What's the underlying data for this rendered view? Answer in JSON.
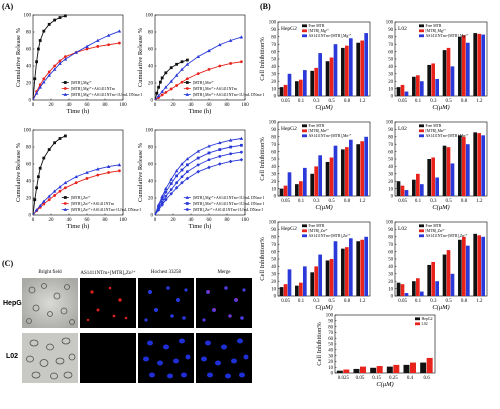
{
  "panels": {
    "A": "(A)",
    "B": "(B)",
    "C": "(C)"
  },
  "colors": {
    "black": "#111111",
    "red": "#e8231c",
    "blue": "#2a39d8",
    "navy": "#1c2a8a"
  },
  "chart_data": [
    {
      "id": "A1",
      "type": "line",
      "ylabel": "Cumulative Release %",
      "xlabel": "Time (h)",
      "xlim": [
        0,
        100
      ],
      "ylim": [
        0,
        100
      ],
      "xticks": [
        0,
        20,
        40,
        60,
        80,
        100
      ],
      "yticks": [
        0,
        20,
        40,
        60,
        80,
        100
      ],
      "series": [
        {
          "name": "[MTR]₂Mg²⁺",
          "color": "#111111",
          "marker": "square",
          "x": [
            0,
            2,
            4,
            6,
            8,
            12,
            18,
            24,
            30,
            36
          ],
          "y": [
            0,
            25,
            45,
            60,
            70,
            81,
            89,
            94,
            97,
            99
          ]
        },
        {
          "name": "[MTR]₂Mg²⁺+AS1411NTm",
          "color": "#e8231c",
          "marker": "circle",
          "x": [
            0,
            4,
            8,
            12,
            18,
            24,
            30,
            36,
            48,
            60,
            72,
            84,
            96
          ],
          "y": [
            0,
            10,
            18,
            25,
            33,
            40,
            46,
            51,
            56,
            60,
            63,
            65,
            67
          ]
        },
        {
          "name": "[MTR]₂Mg²⁺+AS1411NTm+1U/mL DNase I",
          "color": "#2a39d8",
          "marker": "triangle",
          "x": [
            0,
            4,
            8,
            12,
            18,
            24,
            30,
            36,
            48,
            60,
            72,
            84,
            96
          ],
          "y": [
            0,
            8,
            15,
            21,
            29,
            36,
            43,
            48,
            56,
            63,
            70,
            76,
            81
          ]
        }
      ],
      "legend": "bottom-right"
    },
    {
      "id": "A2",
      "type": "line",
      "ylabel": "Cumulative Release %",
      "xlabel": "Time (h)",
      "xlim": [
        0,
        100
      ],
      "ylim": [
        0,
        100
      ],
      "xticks": [
        0,
        20,
        40,
        60,
        80,
        100
      ],
      "yticks": [
        0,
        20,
        40,
        60,
        80,
        100
      ],
      "series": [
        {
          "name": "[MTR]₂Mn²⁺",
          "color": "#111111",
          "marker": "square",
          "x": [
            0,
            2,
            4,
            6,
            8,
            12,
            18,
            24,
            30,
            36
          ],
          "y": [
            0,
            8,
            15,
            21,
            26,
            32,
            38,
            42,
            45,
            47
          ]
        },
        {
          "name": "[MTR]₂Mn²⁺+AS1411NTm",
          "color": "#e8231c",
          "marker": "circle",
          "x": [
            0,
            4,
            8,
            12,
            18,
            24,
            30,
            36,
            48,
            60,
            72,
            84,
            96
          ],
          "y": [
            0,
            3,
            6,
            9,
            13,
            17,
            21,
            25,
            31,
            36,
            40,
            43,
            45
          ]
        },
        {
          "name": "[MTR]₂Mn²⁺+AS1411NTm+1U/mL DNase I",
          "color": "#2a39d8",
          "marker": "triangle",
          "x": [
            0,
            4,
            8,
            12,
            18,
            24,
            30,
            36,
            48,
            60,
            72,
            84,
            96
          ],
          "y": [
            0,
            5,
            10,
            15,
            22,
            29,
            36,
            42,
            51,
            58,
            65,
            70,
            74
          ]
        }
      ],
      "legend": "bottom-right"
    },
    {
      "id": "A3",
      "type": "line",
      "ylabel": "Cumulative Release %",
      "xlabel": "Time (h)",
      "xlim": [
        0,
        100
      ],
      "ylim": [
        0,
        100
      ],
      "xticks": [
        0,
        20,
        40,
        60,
        80,
        100
      ],
      "yticks": [
        0,
        20,
        40,
        60,
        80,
        100
      ],
      "series": [
        {
          "name": "[MTR]₂Zn²⁺",
          "color": "#111111",
          "marker": "square",
          "x": [
            0,
            2,
            4,
            6,
            8,
            12,
            18,
            24,
            30,
            36
          ],
          "y": [
            0,
            18,
            32,
            45,
            55,
            67,
            77,
            85,
            90,
            93
          ]
        },
        {
          "name": "[MTR]₂Zn²⁺+AS1411NTm",
          "color": "#e8231c",
          "marker": "circle",
          "x": [
            0,
            4,
            8,
            12,
            18,
            24,
            30,
            36,
            48,
            60,
            72,
            84,
            96
          ],
          "y": [
            0,
            5,
            9,
            13,
            18,
            23,
            28,
            32,
            38,
            43,
            47,
            50,
            52
          ]
        },
        {
          "name": "[MTR]₂Zn²⁺+AS1411NTm+1U/mL DNase I",
          "color": "#2a39d8",
          "marker": "triangle",
          "x": [
            0,
            4,
            8,
            12,
            18,
            24,
            30,
            36,
            48,
            60,
            72,
            84,
            96
          ],
          "y": [
            0,
            6,
            11,
            16,
            22,
            28,
            33,
            38,
            45,
            50,
            54,
            57,
            59
          ]
        }
      ],
      "legend": "bottom-right"
    },
    {
      "id": "A4",
      "type": "line",
      "ylabel": "Cumulative Release %",
      "xlabel": "Time (h)",
      "xlim": [
        0,
        100
      ],
      "ylim": [
        0,
        100
      ],
      "xticks": [
        0,
        20,
        40,
        60,
        80,
        100
      ],
      "yticks": [
        0,
        20,
        40,
        60,
        80,
        100
      ],
      "series": [
        {
          "name": "[MTR]₂Mg²⁺+AS1411NTm+1U/mL DNase I",
          "color": "#2a39d8",
          "marker": "triangle",
          "x": [
            0,
            4,
            8,
            12,
            18,
            24,
            30,
            36,
            48,
            60,
            72,
            84,
            96
          ],
          "y": [
            0,
            12,
            22,
            31,
            42,
            52,
            60,
            66,
            75,
            81,
            85,
            88,
            90
          ]
        },
        {
          "name": "[MTR]₂Mn²⁺+AS1411NTm+1U/mL DNase I",
          "color": "#2a39d8",
          "marker": "square",
          "x": [
            0,
            4,
            8,
            12,
            18,
            24,
            30,
            36,
            48,
            60,
            72,
            84,
            96
          ],
          "y": [
            0,
            10,
            19,
            27,
            37,
            46,
            53,
            59,
            67,
            73,
            77,
            80,
            82
          ]
        },
        {
          "name": "[MTR]₂Zn²⁺+AS1411NTm+1U/mL DNase I",
          "color": "#2a39d8",
          "marker": "circle",
          "x": [
            0,
            4,
            8,
            12,
            18,
            24,
            30,
            36,
            48,
            60,
            72,
            84,
            96
          ],
          "y": [
            0,
            8,
            15,
            22,
            30,
            38,
            45,
            51,
            59,
            65,
            69,
            72,
            74
          ]
        },
        {
          "name": "",
          "color": "#2a39d8",
          "marker": "diamond",
          "x": [
            0,
            4,
            8,
            12,
            18,
            24,
            30,
            36,
            48,
            60,
            72,
            84,
            96
          ],
          "y": [
            0,
            6,
            12,
            18,
            25,
            32,
            38,
            43,
            51,
            56,
            60,
            63,
            65
          ]
        }
      ],
      "legend": "bottom-right"
    },
    {
      "id": "B1",
      "type": "bar",
      "title": "HepG2",
      "ylabel": "Cell Inhibition%",
      "xlabel": "C(μM)",
      "ylim": [
        0,
        100
      ],
      "yticks": [
        0,
        10,
        20,
        30,
        40,
        50,
        60,
        70,
        80,
        90,
        100
      ],
      "categories": [
        "0.05",
        "0.1",
        "0.3",
        "0.5",
        "0.8",
        "1.2"
      ],
      "series": [
        {
          "name": "Free MTR",
          "color": "#111111",
          "values": [
            12,
            20,
            34,
            47,
            65,
            72
          ]
        },
        {
          "name": "[MTR]₂Mg²⁺",
          "color": "#e8231c",
          "values": [
            15,
            22,
            38,
            52,
            68,
            75
          ]
        },
        {
          "name": "AS1411NTm+[MTR]₂Mg²⁺",
          "color": "#2a39d8",
          "values": [
            30,
            35,
            58,
            70,
            78,
            85
          ]
        }
      ],
      "legend": "top-left"
    },
    {
      "id": "B2",
      "type": "bar",
      "title": "L02",
      "ylabel": "",
      "xlabel": "C(μM)",
      "ylim": [
        0,
        100
      ],
      "yticks": [
        0,
        10,
        20,
        30,
        40,
        50,
        60,
        70,
        80,
        90,
        100
      ],
      "categories": [
        "0.05",
        "0.1",
        "0.3",
        "0.5",
        "0.8",
        "1.2"
      ],
      "series": [
        {
          "name": "Free MTR",
          "color": "#111111",
          "values": [
            12,
            26,
            42,
            62,
            80,
            85
          ]
        },
        {
          "name": "[MTR]₂Mg²⁺",
          "color": "#e8231c",
          "values": [
            15,
            28,
            44,
            65,
            82,
            84
          ]
        },
        {
          "name": "AS1411NTm+[MTR]₂Mg²⁺",
          "color": "#2a39d8",
          "values": [
            6,
            20,
            23,
            40,
            72,
            83
          ]
        }
      ],
      "legend": "top-left"
    },
    {
      "id": "B3",
      "type": "bar",
      "title": "HepG2",
      "ylabel": "Cell Inhibition%",
      "xlabel": "C(μM)",
      "ylim": [
        0,
        100
      ],
      "yticks": [
        0,
        10,
        20,
        30,
        40,
        50,
        60,
        70,
        80,
        90,
        100
      ],
      "categories": [
        "0.05",
        "0.1",
        "0.3",
        "0.5",
        "0.8",
        "1.2"
      ],
      "series": [
        {
          "name": "Free MTR",
          "color": "#111111",
          "values": [
            10,
            16,
            30,
            46,
            63,
            70
          ]
        },
        {
          "name": "[MTR]₂Mn²⁺",
          "color": "#e8231c",
          "values": [
            14,
            20,
            40,
            52,
            66,
            74
          ]
        },
        {
          "name": "AS1411NTm+[MTR]₂Mn²⁺",
          "color": "#2a39d8",
          "values": [
            32,
            38,
            55,
            68,
            76,
            80
          ]
        }
      ],
      "legend": "top-left"
    },
    {
      "id": "B4",
      "type": "bar",
      "title": "L02",
      "ylabel": "",
      "xlabel": "C(μM)",
      "ylim": [
        0,
        100
      ],
      "yticks": [
        0,
        10,
        20,
        30,
        40,
        50,
        60,
        70,
        80,
        90,
        100
      ],
      "categories": [
        "0.05",
        "0.1",
        "0.3",
        "0.5",
        "0.8",
        "1.2"
      ],
      "series": [
        {
          "name": "Free MTR",
          "color": "#111111",
          "values": [
            20,
            22,
            50,
            68,
            82,
            86
          ]
        },
        {
          "name": "[MTR]₂Mn²⁺",
          "color": "#e8231c",
          "values": [
            14,
            30,
            52,
            66,
            80,
            85
          ]
        },
        {
          "name": "AS1411NTm+[MTR]₂Mn²⁺",
          "color": "#2a39d8",
          "values": [
            8,
            16,
            25,
            44,
            70,
            82
          ]
        }
      ],
      "legend": "top-left"
    },
    {
      "id": "B5",
      "type": "bar",
      "title": "HepG2",
      "ylabel": "Cell Inhibition%",
      "xlabel": "C(μM)",
      "ylim": [
        0,
        100
      ],
      "yticks": [
        0,
        10,
        20,
        30,
        40,
        50,
        60,
        70,
        80,
        90,
        100
      ],
      "categories": [
        "0.05",
        "0.1",
        "0.3",
        "0.5",
        "0.8",
        "1.2"
      ],
      "series": [
        {
          "name": "Free MTR",
          "color": "#111111",
          "values": [
            12,
            14,
            32,
            48,
            64,
            74
          ]
        },
        {
          "name": "[MTR]₂Zn²⁺",
          "color": "#e8231c",
          "values": [
            16,
            18,
            40,
            50,
            66,
            76
          ]
        },
        {
          "name": "AS1411NTm+[MTR]₂Zn²⁺",
          "color": "#2a39d8",
          "values": [
            36,
            40,
            56,
            74,
            78,
            80
          ]
        }
      ],
      "legend": "top-left"
    },
    {
      "id": "B6",
      "type": "bar",
      "title": "L02",
      "ylabel": "",
      "xlabel": "C(μM)",
      "ylim": [
        0,
        100
      ],
      "yticks": [
        0,
        10,
        20,
        30,
        40,
        50,
        60,
        70,
        80,
        90,
        100
      ],
      "categories": [
        "0.05",
        "0.1",
        "0.3",
        "0.5",
        "0.8",
        "1.2"
      ],
      "series": [
        {
          "name": "Free MTR",
          "color": "#111111",
          "values": [
            18,
            20,
            42,
            56,
            76,
            84
          ]
        },
        {
          "name": "[MTR]₂Zn²⁺",
          "color": "#e8231c",
          "values": [
            16,
            24,
            46,
            62,
            80,
            82
          ]
        },
        {
          "name": "AS1411NTm+[MTR]₂Zn²⁺",
          "color": "#2a39d8",
          "values": [
            4,
            6,
            20,
            30,
            68,
            80
          ]
        }
      ],
      "legend": "top-left"
    },
    {
      "id": "B7",
      "type": "bar",
      "title": "",
      "ylabel": "Cell Inhibition%",
      "xlabel": "C(μM)",
      "ylim": [
        0,
        100
      ],
      "yticks": [
        0,
        10,
        20,
        30,
        40,
        50,
        60,
        70,
        80,
        90,
        100
      ],
      "categories": [
        "0.025",
        "0.05",
        "0.15",
        "0.25",
        "0.4",
        "0.6"
      ],
      "series": [
        {
          "name": "HepG2",
          "color": "#111111",
          "values": [
            4,
            7,
            9,
            11,
            14,
            18
          ]
        },
        {
          "name": "L02",
          "color": "#e8231c",
          "values": [
            6,
            11,
            12,
            14,
            18,
            26
          ]
        }
      ],
      "legend": "top-right"
    }
  ],
  "microscopy": {
    "columns": [
      "Bright field",
      "AS1411NTm+[MTR]₂Zn²⁺",
      "Hochest 33258",
      "Merge"
    ],
    "rows": [
      "HepG2",
      "L02"
    ]
  }
}
